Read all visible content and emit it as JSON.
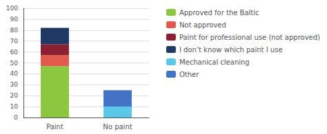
{
  "chart_data": {
    "type": "bar",
    "stacked": true,
    "categories": [
      "Paint",
      "No paint"
    ],
    "series": [
      {
        "name": "Approved for the Baltic",
        "color": "#8DC63F",
        "values": [
          47,
          0
        ]
      },
      {
        "name": "Not approved",
        "color": "#E05A4E",
        "values": [
          10,
          0
        ]
      },
      {
        "name": "Paint for professional use (not approved)",
        "color": "#8B2030",
        "values": [
          10,
          0
        ]
      },
      {
        "name": "I don’t know which paint I use",
        "color": "#1F3864",
        "values": [
          15,
          0
        ]
      },
      {
        "name": "Mechanical cleaning",
        "color": "#5BC8E8",
        "values": [
          0,
          10
        ]
      },
      {
        "name": "Other",
        "color": "#4472C4",
        "values": [
          0,
          15
        ]
      }
    ],
    "ylim": [
      0,
      100
    ],
    "yticks": [
      0,
      10,
      20,
      30,
      40,
      50,
      60,
      70,
      80,
      90,
      100
    ],
    "grid": true,
    "legend": "upper right"
  }
}
